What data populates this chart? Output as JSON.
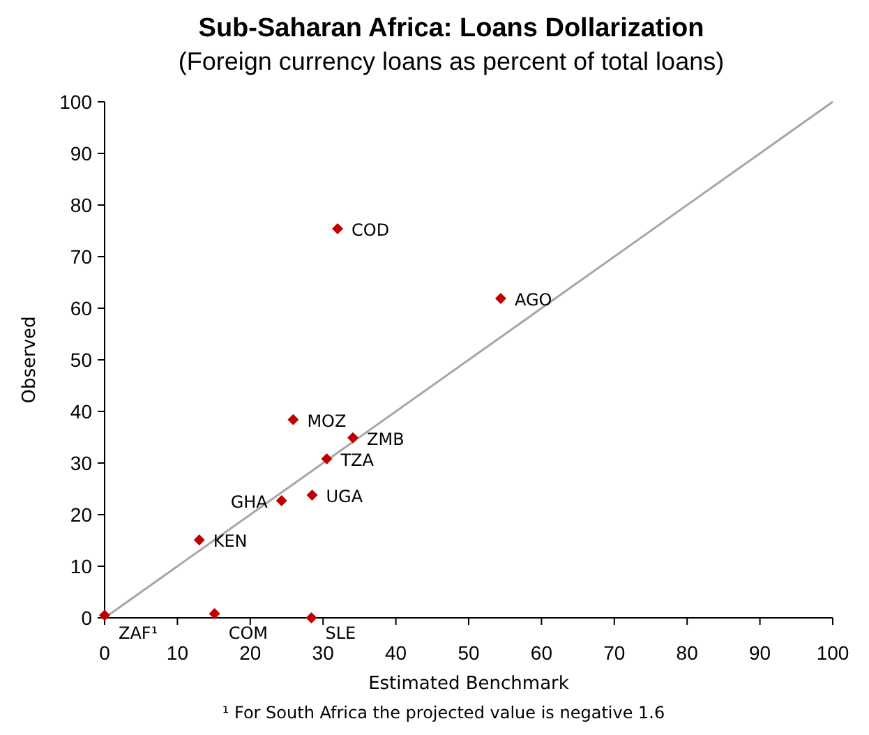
{
  "chart_data": {
    "type": "scatter",
    "title": "Sub-Saharan Africa: Loans Dollarization",
    "subtitle": "(Foreign currency loans as percent of total loans)",
    "xlabel": "Estimated Benchmark",
    "ylabel": "Observed",
    "series": [
      {
        "type": "line",
        "color": "#a6a6a6",
        "x": [
          0,
          100
        ],
        "values": [
          0,
          100
        ],
        "marker": "none"
      },
      {
        "color": "#c00000",
        "marker": "diamond",
        "x": [
          0,
          15.1,
          28.4,
          13,
          24.3,
          28.5,
          30.5,
          34.1,
          25.9,
          32,
          54.4
        ],
        "values": [
          0.5,
          0.8,
          0,
          15.1,
          22.7,
          23.8,
          30.8,
          34.9,
          38.4,
          75.4,
          61.9
        ]
      }
    ],
    "xlim": [
      0,
      100
    ],
    "ylim": [
      0,
      100
    ],
    "xticks": [
      0,
      10,
      20,
      30,
      40,
      50,
      60,
      70,
      80,
      90,
      100
    ],
    "yticks": [
      0,
      10,
      20,
      30,
      40,
      50,
      60,
      70,
      80,
      90,
      100
    ],
    "grid": false,
    "annotations": [
      {
        "text": "ZAF¹",
        "x": 0,
        "y": 0.5
      },
      {
        "text": "COM",
        "x": 15.1,
        "y": 0.8
      },
      {
        "text": "SLE",
        "x": 28.4,
        "y": 0
      },
      {
        "text": "KEN",
        "x": 13,
        "y": 15.1
      },
      {
        "text": "GHA",
        "x": 24.3,
        "y": 22.7
      },
      {
        "text": "UGA",
        "x": 28.5,
        "y": 23.8
      },
      {
        "text": "TZA",
        "x": 30.5,
        "y": 30.8
      },
      {
        "text": "ZMB",
        "x": 34.1,
        "y": 34.9
      },
      {
        "text": "MOZ",
        "x": 25.9,
        "y": 38.4
      },
      {
        "text": "COD",
        "x": 32,
        "y": 75.4
      },
      {
        "text": "AGO",
        "x": 54.4,
        "y": 61.9
      },
      "¹ For South Africa the projected value is negative 1.6"
    ]
  }
}
